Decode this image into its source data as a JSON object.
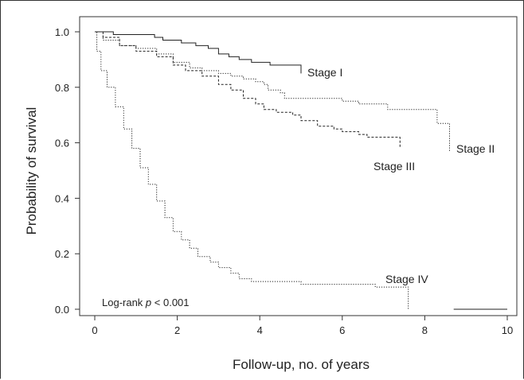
{
  "chart_data": {
    "type": "line",
    "subtype": "kaplan-meier step curves",
    "title": "",
    "xlabel": "Follow-up, no. of years",
    "ylabel": "Probability of survival",
    "xlim": [
      0,
      10
    ],
    "ylim": [
      0,
      1.0
    ],
    "xticks": [
      0,
      2,
      4,
      6,
      8,
      10
    ],
    "yticks": [
      "0.0",
      "0.2",
      "0.4",
      "0.6",
      "0.8",
      "1.0"
    ],
    "grid": false,
    "annotation": {
      "prefix": "Log-rank ",
      "italic": "p",
      "suffix": " < 0.001"
    },
    "series": [
      {
        "name": "Stage I",
        "style": "solid",
        "color": "#222222",
        "points": [
          [
            0,
            1.0
          ],
          [
            0.45,
            1.0
          ],
          [
            0.45,
            0.99
          ],
          [
            1.45,
            0.99
          ],
          [
            1.45,
            0.98
          ],
          [
            1.65,
            0.98
          ],
          [
            1.65,
            0.97
          ],
          [
            2.1,
            0.97
          ],
          [
            2.1,
            0.96
          ],
          [
            2.45,
            0.96
          ],
          [
            2.45,
            0.95
          ],
          [
            2.75,
            0.95
          ],
          [
            2.75,
            0.94
          ],
          [
            3.0,
            0.94
          ],
          [
            3.0,
            0.92
          ],
          [
            3.25,
            0.92
          ],
          [
            3.25,
            0.91
          ],
          [
            3.5,
            0.91
          ],
          [
            3.5,
            0.9
          ],
          [
            3.8,
            0.9
          ],
          [
            3.8,
            0.89
          ],
          [
            4.25,
            0.89
          ],
          [
            4.25,
            0.88
          ],
          [
            4.55,
            0.88
          ],
          [
            4.55,
            0.88
          ],
          [
            5.0,
            0.88
          ],
          [
            5.0,
            0.86
          ],
          [
            5.0,
            0.85
          ]
        ]
      },
      {
        "name": "Stage II",
        "style": "dotted",
        "color": "#222222",
        "points": [
          [
            0,
            1.0
          ],
          [
            0.2,
            0.97
          ],
          [
            0.6,
            0.95
          ],
          [
            1.0,
            0.94
          ],
          [
            1.5,
            0.92
          ],
          [
            1.9,
            0.89
          ],
          [
            2.3,
            0.87
          ],
          [
            2.6,
            0.86
          ],
          [
            3.0,
            0.85
          ],
          [
            3.3,
            0.84
          ],
          [
            3.6,
            0.83
          ],
          [
            3.9,
            0.82
          ],
          [
            4.1,
            0.81
          ],
          [
            4.2,
            0.79
          ],
          [
            4.5,
            0.78
          ],
          [
            4.6,
            0.76
          ],
          [
            5.0,
            0.76
          ],
          [
            6.0,
            0.75
          ],
          [
            6.4,
            0.74
          ],
          [
            7.0,
            0.74
          ],
          [
            7.1,
            0.72
          ],
          [
            8.0,
            0.72
          ],
          [
            8.3,
            0.69
          ],
          [
            8.3,
            0.67
          ],
          [
            8.6,
            0.67
          ],
          [
            8.6,
            0.57
          ]
        ]
      },
      {
        "name": "Stage III",
        "style": "dashed",
        "color": "#222222",
        "points": [
          [
            0,
            1.0
          ],
          [
            0.2,
            0.98
          ],
          [
            0.6,
            0.95
          ],
          [
            1.0,
            0.93
          ],
          [
            1.5,
            0.91
          ],
          [
            1.9,
            0.88
          ],
          [
            2.2,
            0.86
          ],
          [
            2.6,
            0.84
          ],
          [
            3.0,
            0.81
          ],
          [
            3.3,
            0.79
          ],
          [
            3.6,
            0.76
          ],
          [
            3.9,
            0.74
          ],
          [
            4.1,
            0.72
          ],
          [
            4.4,
            0.71
          ],
          [
            4.8,
            0.7
          ],
          [
            5.0,
            0.68
          ],
          [
            5.4,
            0.66
          ],
          [
            5.8,
            0.65
          ],
          [
            6.0,
            0.64
          ],
          [
            6.4,
            0.63
          ],
          [
            6.6,
            0.62
          ],
          [
            7.0,
            0.62
          ],
          [
            7.4,
            0.61
          ],
          [
            7.4,
            0.58
          ]
        ]
      },
      {
        "name": "Stage IV",
        "style": "dotted",
        "color": "#222222",
        "points": [
          [
            0,
            1.0
          ],
          [
            0.05,
            0.93
          ],
          [
            0.15,
            0.86
          ],
          [
            0.3,
            0.8
          ],
          [
            0.5,
            0.73
          ],
          [
            0.7,
            0.65
          ],
          [
            0.9,
            0.58
          ],
          [
            1.1,
            0.51
          ],
          [
            1.3,
            0.45
          ],
          [
            1.5,
            0.39
          ],
          [
            1.7,
            0.33
          ],
          [
            1.9,
            0.28
          ],
          [
            2.1,
            0.25
          ],
          [
            2.3,
            0.22
          ],
          [
            2.5,
            0.19
          ],
          [
            2.8,
            0.17
          ],
          [
            3.0,
            0.15
          ],
          [
            3.3,
            0.13
          ],
          [
            3.5,
            0.11
          ],
          [
            3.8,
            0.1
          ],
          [
            4.3,
            0.1
          ],
          [
            5.0,
            0.09
          ],
          [
            6.0,
            0.09
          ],
          [
            6.8,
            0.08
          ],
          [
            7.6,
            0.08
          ],
          [
            7.6,
            0.0
          ]
        ]
      },
      {
        "name": "",
        "style": "solid",
        "color": "#222222",
        "points": [
          [
            8.7,
            0.0
          ],
          [
            10,
            0.0
          ]
        ]
      }
    ]
  }
}
